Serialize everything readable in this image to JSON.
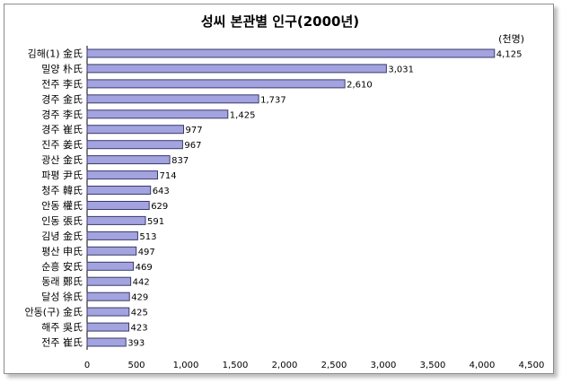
{
  "chart_data": {
    "type": "bar",
    "orientation": "horizontal",
    "title": "성씨 본관별 인구(2000년)",
    "unit_label": "(천명)",
    "categories": [
      "김해(1) 金氏",
      "밀양 朴氏",
      "전주 李氏",
      "경주 金氏",
      "경주 李氏",
      "경주 崔氏",
      "진주 姜氏",
      "광산 金氏",
      "파평 尹氏",
      "청주 韓氏",
      "안동 權氏",
      "인동 張氏",
      "김녕 金氏",
      "평산 申氏",
      "순흥 安氏",
      "동래 鄭氏",
      "달성 徐氏",
      "안동(구) 金氏",
      "해주 吳氏",
      "전주 崔氏"
    ],
    "values": [
      4125,
      3031,
      2610,
      1737,
      1425,
      977,
      967,
      837,
      714,
      643,
      629,
      591,
      513,
      497,
      469,
      442,
      429,
      425,
      423,
      393
    ],
    "value_labels": [
      "4,125",
      "3,031",
      "2,610",
      "1,737",
      "1,425",
      "977",
      "967",
      "837",
      "714",
      "643",
      "629",
      "591",
      "513",
      "497",
      "469",
      "442",
      "429",
      "425",
      "423",
      "393"
    ],
    "x_ticks": [
      0,
      500,
      1000,
      1500,
      2000,
      2500,
      3000,
      3500,
      4000,
      4500
    ],
    "x_tick_labels": [
      "0",
      "500",
      "1,000",
      "1,500",
      "2,000",
      "2,500",
      "3,000",
      "3,500",
      "4,000",
      "4,500"
    ],
    "xlim": [
      0,
      4500
    ],
    "grid": false,
    "legend": "none",
    "colors": {
      "bar_fill": "#a3a3e0",
      "bar_stroke": "#3a3a6a"
    }
  }
}
